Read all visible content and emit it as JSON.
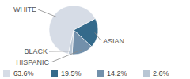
{
  "chart_data": {
    "type": "pie",
    "categories": [
      "WHITE",
      "ASIAN",
      "HISPANIC",
      "BLACK"
    ],
    "values": [
      63.6,
      19.5,
      14.2,
      2.6
    ],
    "value_labels": [
      "63.6%",
      "19.5%",
      "14.2%",
      "2.6%"
    ],
    "colors": [
      "#d6dce6",
      "#346a8b",
      "#7290ab",
      "#b9c6d4"
    ],
    "data_labels": false
  }
}
